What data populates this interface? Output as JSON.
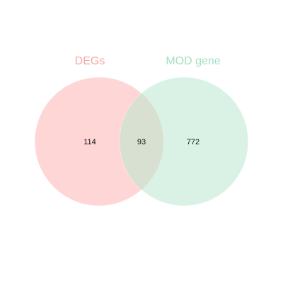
{
  "venn": {
    "sets": [
      {
        "name": "DEGs",
        "color": "#ff9e9e",
        "label_color": "#f7a6a6"
      },
      {
        "name": "MOD gene",
        "color": "#a8dfc3",
        "label_color": "#a6dec2"
      }
    ],
    "counts": {
      "only_a": "114",
      "intersection": "93",
      "only_b": "772"
    },
    "intersection_color": "#d8e0d2"
  }
}
